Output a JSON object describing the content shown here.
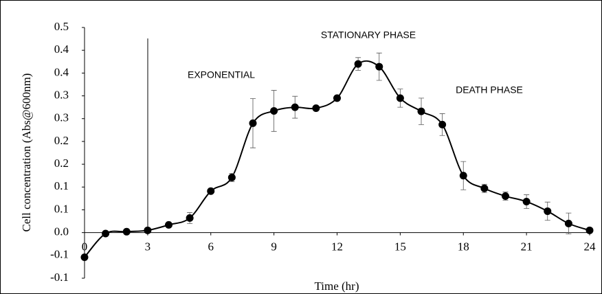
{
  "chart_data": {
    "type": "line",
    "x_label": "Time (hr)",
    "y_label": "Cell concentration (Abs@600nm)",
    "annotations": [
      "EXPONENTIAL",
      "STATIONARY PHASE",
      "DEATH PHASE"
    ],
    "x": [
      0,
      1,
      2,
      3,
      4,
      5,
      6,
      7,
      8,
      9,
      10,
      11,
      12,
      13,
      14,
      15,
      16,
      17,
      18,
      19,
      20,
      21,
      22,
      23,
      24
    ],
    "series": [
      {
        "name": "Cell concentration",
        "color": "#000000",
        "values": [
          -0.054,
          -0.002,
          0.002,
          0.005,
          0.017,
          0.032,
          0.091,
          0.121,
          0.24,
          0.267,
          0.275,
          0.273,
          0.295,
          0.37,
          0.364,
          0.295,
          0.266,
          0.237,
          0.125,
          0.097,
          0.08,
          0.068,
          0.047,
          0.02,
          0.005
        ],
        "errors": [
          null,
          null,
          null,
          null,
          null,
          0.012,
          0.004,
          0.009,
          0.054,
          0.045,
          0.024,
          null,
          null,
          0.014,
          0.03,
          0.02,
          0.029,
          0.024,
          0.031,
          0.009,
          0.009,
          0.015,
          0.02,
          0.023,
          null
        ]
      }
    ],
    "xlim": [
      0,
      24
    ],
    "xticks": [
      0,
      3,
      6,
      9,
      12,
      15,
      18,
      21,
      24
    ],
    "ylim": [
      -0.1,
      0.45
    ],
    "yticks": [
      {
        "value": 0.45,
        "label": "0.5"
      },
      {
        "value": 0.4,
        "label": "0.4"
      },
      {
        "value": 0.35,
        "label": "0.4"
      },
      {
        "value": 0.3,
        "label": "0.3"
      },
      {
        "value": 0.25,
        "label": "0.3"
      },
      {
        "value": 0.2,
        "label": "0.2"
      },
      {
        "value": 0.15,
        "label": "0.2"
      },
      {
        "value": 0.1,
        "label": "0.1"
      },
      {
        "value": 0.05,
        "label": "0.1"
      },
      {
        "value": 0.0,
        "label": "0.0"
      },
      {
        "value": -0.05,
        "label": "-0.1"
      },
      {
        "value": -0.1,
        "label": "-0.1"
      }
    ]
  }
}
